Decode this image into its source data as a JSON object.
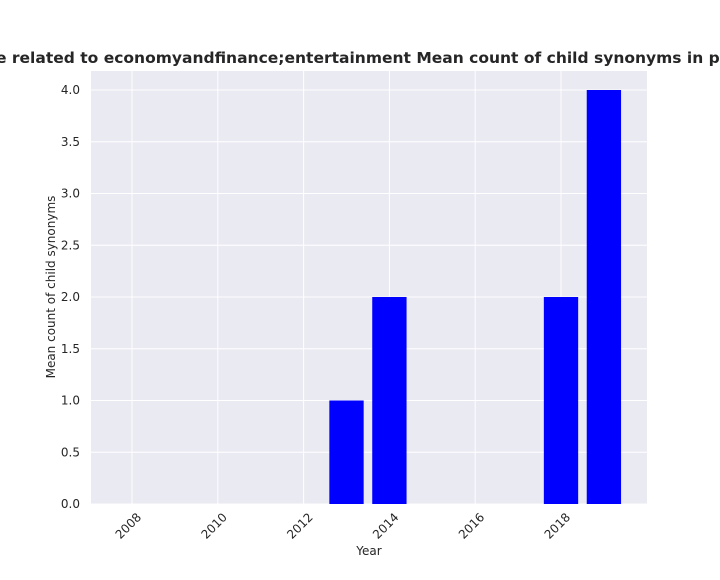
{
  "chart_data": {
    "type": "bar",
    "title": "ies are related to economyandfinance;entertainment Mean count of child synonyms in privacy",
    "xlabel": "Year",
    "ylabel": "Mean count of child synonyms",
    "x": [
      2013,
      2014,
      2018,
      2019
    ],
    "values": [
      1.0,
      2.0,
      2.0,
      4.0
    ],
    "bar_color": "#0000ff",
    "xlim": [
      2008,
      2020
    ],
    "ylim": [
      0,
      4
    ],
    "x_ticks": [
      2008,
      2010,
      2012,
      2014,
      2016,
      2018
    ],
    "y_ticks": [
      "0.0",
      "0.5",
      "1.0",
      "1.5",
      "2.0",
      "2.5",
      "3.0",
      "3.5",
      "4.0"
    ],
    "grid": true,
    "background_color": "#eaeaf2",
    "grid_color": "#ffffff"
  }
}
